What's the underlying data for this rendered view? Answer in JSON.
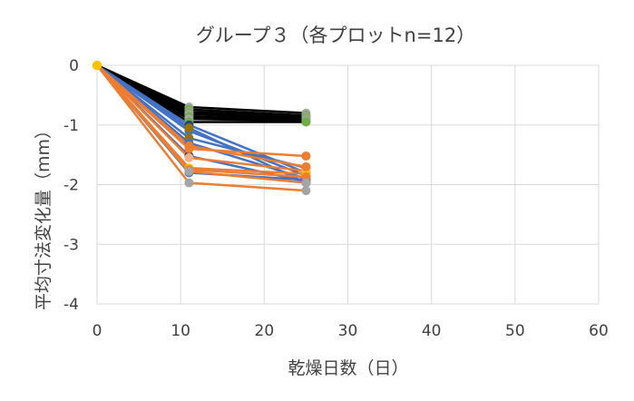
{
  "chart_data": {
    "type": "line",
    "title": "グループ３（各プロットn=12）",
    "xlabel": "乾燥日数（日）",
    "ylabel": "平均寸法変化量（mm）",
    "xlim": [
      0,
      60
    ],
    "ylim": [
      -4,
      0
    ],
    "xticks": [
      0,
      10,
      20,
      30,
      40,
      50,
      60
    ],
    "yticks": [
      0,
      -1,
      -2,
      -3,
      -4
    ],
    "x_tick_labels": [
      "0",
      "10",
      "20",
      "30",
      "40",
      "50",
      "60"
    ],
    "y_tick_labels": [
      "0",
      "-1",
      "-2",
      "-3",
      "-4"
    ],
    "grid": true,
    "x": [
      0,
      11,
      25
    ],
    "series": [
      {
        "color": "#000000",
        "marker": "#A5A5A5",
        "values": [
          0,
          -0.7,
          -0.8
        ]
      },
      {
        "color": "#000000",
        "marker": "#70AD47",
        "values": [
          0,
          -0.74,
          -0.84
        ]
      },
      {
        "color": "#000000",
        "marker": "#A5A5A5",
        "values": [
          0,
          -0.78,
          -0.86
        ]
      },
      {
        "color": "#000000",
        "marker": "#70AD47",
        "values": [
          0,
          -0.8,
          -0.88
        ]
      },
      {
        "color": "#000000",
        "marker": "#A5A5A5",
        "values": [
          0,
          -0.82,
          -0.9
        ]
      },
      {
        "color": "#000000",
        "marker": "#70AD47",
        "values": [
          0,
          -0.86,
          -0.92
        ]
      },
      {
        "color": "#000000",
        "marker": "#A5A5A5",
        "values": [
          0,
          -0.9,
          -0.93
        ]
      },
      {
        "color": "#000000",
        "marker": "#70AD47",
        "values": [
          0,
          -0.95,
          -0.95
        ]
      },
      {
        "color": "#4472C4",
        "marker": "#264478",
        "values": [
          0,
          -1.0,
          -1.8
        ]
      },
      {
        "color": "#4472C4",
        "marker": "#4472C4",
        "values": [
          0,
          -1.1,
          -1.85
        ]
      },
      {
        "color": "#4472C4",
        "marker": "#997300",
        "values": [
          0,
          -1.22,
          -1.72
        ]
      },
      {
        "color": "#4472C4",
        "marker": "#4472C4",
        "values": [
          0,
          -1.3,
          -1.9
        ]
      },
      {
        "color": "#4472C4",
        "marker": "#264478",
        "values": [
          0,
          -1.52,
          -1.95
        ]
      },
      {
        "color": "#4472C4",
        "marker": "#4472C4",
        "values": [
          0,
          -1.8,
          -1.92
        ]
      },
      {
        "color": "#4472C4",
        "marker": "#997300",
        "values": [
          0,
          -1.05,
          -1.97
        ]
      },
      {
        "color": "#ED7D31",
        "marker": "#ED7D31",
        "values": [
          0,
          -1.4,
          -1.52
        ]
      },
      {
        "color": "#ED7D31",
        "marker": "#F4B183",
        "values": [
          0,
          -1.55,
          -1.77
        ]
      },
      {
        "color": "#ED7D31",
        "marker": "#FFC000",
        "values": [
          0,
          -1.72,
          -1.82
        ]
      },
      {
        "color": "#ED7D31",
        "marker": "#ED7D31",
        "values": [
          0,
          -1.75,
          -1.87
        ]
      },
      {
        "color": "#ED7D31",
        "marker": "#A5A5A5",
        "values": [
          0,
          -1.78,
          -1.97
        ]
      },
      {
        "color": "#ED7D31",
        "marker": "#A5A5A5",
        "values": [
          0,
          -1.97,
          -2.1
        ]
      },
      {
        "color": "#ED7D31",
        "marker": "#ED7D31",
        "values": [
          0,
          -1.35,
          -1.7
        ]
      }
    ]
  }
}
